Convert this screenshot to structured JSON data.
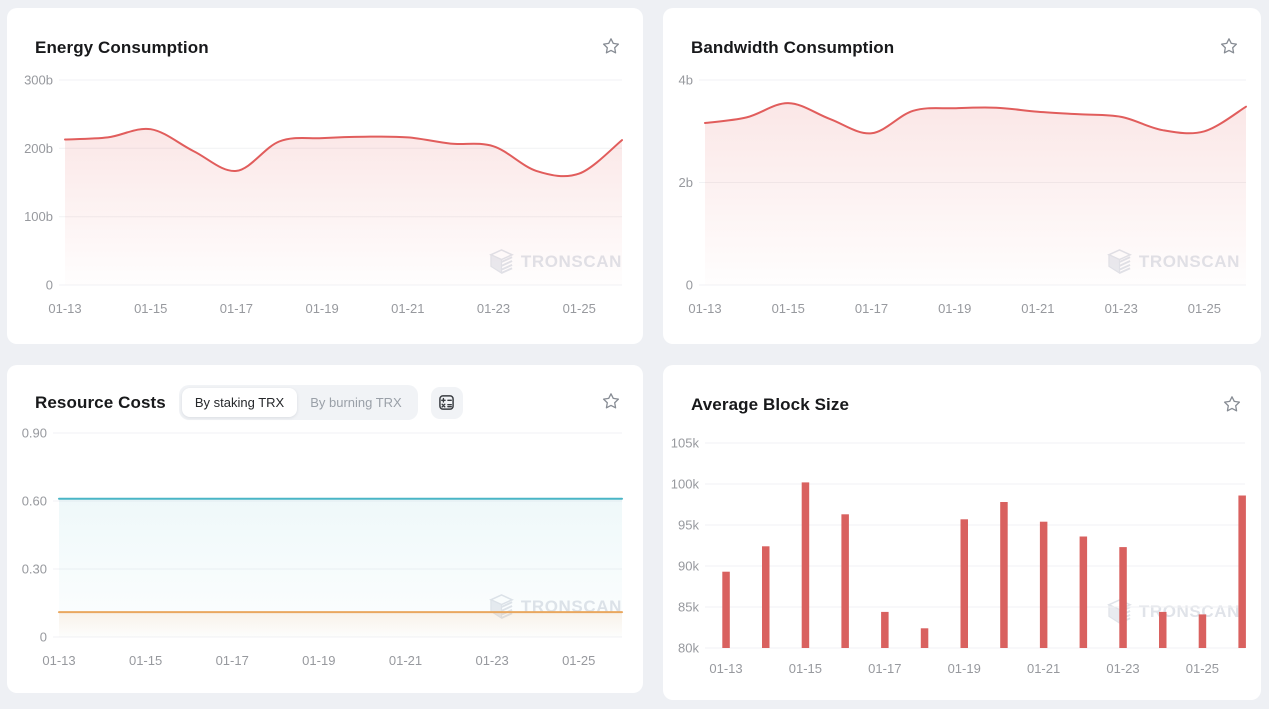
{
  "app": {
    "watermark_text": "TRONSCAN"
  },
  "colors": {
    "page_bg": "#eef0f4",
    "card_bg": "#ffffff",
    "line_red": "#e15d5c",
    "bar_red": "#d9615f",
    "teal": "#49b5c6",
    "orange": "#e9a75f",
    "axis_text": "#97999e",
    "grid_line": "#f1f2f4",
    "title_text": "#18191b",
    "watermark": "#e0e3e9"
  },
  "cards": {
    "energy": {
      "title": "Energy Consumption"
    },
    "bandwidth": {
      "title": "Bandwidth Consumption"
    },
    "resource": {
      "title": "Resource Costs",
      "tabs": [
        {
          "label": "By staking TRX",
          "active": true
        },
        {
          "label": "By burning TRX",
          "active": false
        }
      ],
      "calculator_icon": "calculator-icon"
    },
    "blocksize": {
      "title": "Average Block Size"
    }
  },
  "chart_data": [
    {
      "id": "energy-consumption",
      "type": "area",
      "title": "Energy Consumption",
      "x": [
        "01-13",
        "01-14",
        "01-15",
        "01-16",
        "01-17",
        "01-18",
        "01-19",
        "01-20",
        "01-21",
        "01-22",
        "01-23",
        "01-24",
        "01-25",
        "01-26"
      ],
      "x_ticks": [
        {
          "i": 0,
          "label": "01-13"
        },
        {
          "i": 2,
          "label": "01-15"
        },
        {
          "i": 4,
          "label": "01-17"
        },
        {
          "i": 6,
          "label": "01-19"
        },
        {
          "i": 8,
          "label": "01-21"
        },
        {
          "i": 10,
          "label": "01-23"
        },
        {
          "i": 12,
          "label": "01-25"
        }
      ],
      "ylim": [
        0,
        300
      ],
      "y_unit": "billions",
      "y_ticks": [
        {
          "v": 0,
          "label": "0"
        },
        {
          "v": 100,
          "label": "100b"
        },
        {
          "v": 200,
          "label": "200b"
        },
        {
          "v": 300,
          "label": "300b"
        }
      ],
      "grid": true,
      "legend": false,
      "series": [
        {
          "name": "Energy Consumption",
          "color": "#e15d5c",
          "values": [
            213,
            216,
            228,
            196,
            167,
            210,
            215,
            217,
            216,
            207,
            203,
            167,
            163,
            212
          ]
        }
      ]
    },
    {
      "id": "bandwidth-consumption",
      "type": "area",
      "title": "Bandwidth Consumption",
      "x": [
        "01-13",
        "01-14",
        "01-15",
        "01-16",
        "01-17",
        "01-18",
        "01-19",
        "01-20",
        "01-21",
        "01-22",
        "01-23",
        "01-24",
        "01-25",
        "01-26"
      ],
      "x_ticks": [
        {
          "i": 0,
          "label": "01-13"
        },
        {
          "i": 2,
          "label": "01-15"
        },
        {
          "i": 4,
          "label": "01-17"
        },
        {
          "i": 6,
          "label": "01-19"
        },
        {
          "i": 8,
          "label": "01-21"
        },
        {
          "i": 10,
          "label": "01-23"
        },
        {
          "i": 12,
          "label": "01-25"
        }
      ],
      "ylim": [
        0,
        4
      ],
      "y_unit": "billions",
      "y_ticks": [
        {
          "v": 0,
          "label": "0"
        },
        {
          "v": 2,
          "label": "2b"
        },
        {
          "v": 4,
          "label": "4b"
        }
      ],
      "grid": true,
      "legend": false,
      "series": [
        {
          "name": "Bandwidth Consumption",
          "color": "#e15d5c",
          "values": [
            3.16,
            3.27,
            3.55,
            3.24,
            2.96,
            3.4,
            3.45,
            3.46,
            3.38,
            3.33,
            3.28,
            3.02,
            3.0,
            3.48
          ]
        }
      ]
    },
    {
      "id": "resource-costs",
      "type": "area",
      "title": "Resource Costs",
      "active_tab": "By staking TRX",
      "x": [
        "01-13",
        "01-14",
        "01-15",
        "01-16",
        "01-17",
        "01-18",
        "01-19",
        "01-20",
        "01-21",
        "01-22",
        "01-23",
        "01-24",
        "01-25",
        "01-26"
      ],
      "x_ticks": [
        {
          "i": 0,
          "label": "01-13"
        },
        {
          "i": 2,
          "label": "01-15"
        },
        {
          "i": 4,
          "label": "01-17"
        },
        {
          "i": 6,
          "label": "01-19"
        },
        {
          "i": 8,
          "label": "01-21"
        },
        {
          "i": 10,
          "label": "01-23"
        },
        {
          "i": 12,
          "label": "01-25"
        }
      ],
      "ylim": [
        0,
        0.9
      ],
      "y_ticks": [
        {
          "v": 0,
          "label": "0"
        },
        {
          "v": 0.3,
          "label": "0.30"
        },
        {
          "v": 0.6,
          "label": "0.60"
        },
        {
          "v": 0.9,
          "label": "0.90"
        }
      ],
      "grid": true,
      "legend": false,
      "series": [
        {
          "name": "teal-line",
          "color": "#49b5c6",
          "values": [
            0.61,
            0.61,
            0.61,
            0.61,
            0.61,
            0.61,
            0.61,
            0.61,
            0.61,
            0.61,
            0.61,
            0.61,
            0.61,
            0.61
          ]
        },
        {
          "name": "orange-line",
          "color": "#e9a75f",
          "values": [
            0.11,
            0.11,
            0.11,
            0.11,
            0.11,
            0.11,
            0.11,
            0.11,
            0.11,
            0.11,
            0.11,
            0.11,
            0.11,
            0.11
          ]
        }
      ]
    },
    {
      "id": "average-block-size",
      "type": "bar",
      "title": "Average Block Size",
      "x": [
        "01-13",
        "01-14",
        "01-15",
        "01-16",
        "01-17",
        "01-18",
        "01-19",
        "01-20",
        "01-21",
        "01-22",
        "01-23",
        "01-24",
        "01-25",
        "01-26"
      ],
      "x_ticks": [
        {
          "i": 0,
          "label": "01-13"
        },
        {
          "i": 2,
          "label": "01-15"
        },
        {
          "i": 4,
          "label": "01-17"
        },
        {
          "i": 6,
          "label": "01-19"
        },
        {
          "i": 8,
          "label": "01-21"
        },
        {
          "i": 10,
          "label": "01-23"
        },
        {
          "i": 12,
          "label": "01-25"
        }
      ],
      "ylim": [
        80,
        105
      ],
      "y_unit": "thousands",
      "y_ticks": [
        {
          "v": 80,
          "label": "80k"
        },
        {
          "v": 85,
          "label": "85k"
        },
        {
          "v": 90,
          "label": "90k"
        },
        {
          "v": 95,
          "label": "95k"
        },
        {
          "v": 100,
          "label": "100k"
        },
        {
          "v": 105,
          "label": "105k"
        }
      ],
      "grid": true,
      "legend": false,
      "series": [
        {
          "name": "Average Block Size",
          "color": "#d9615f",
          "values": [
            89.3,
            92.4,
            100.2,
            96.3,
            84.4,
            82.4,
            95.7,
            97.8,
            95.4,
            93.6,
            92.3,
            84.4,
            84.1,
            98.6
          ]
        }
      ]
    }
  ]
}
